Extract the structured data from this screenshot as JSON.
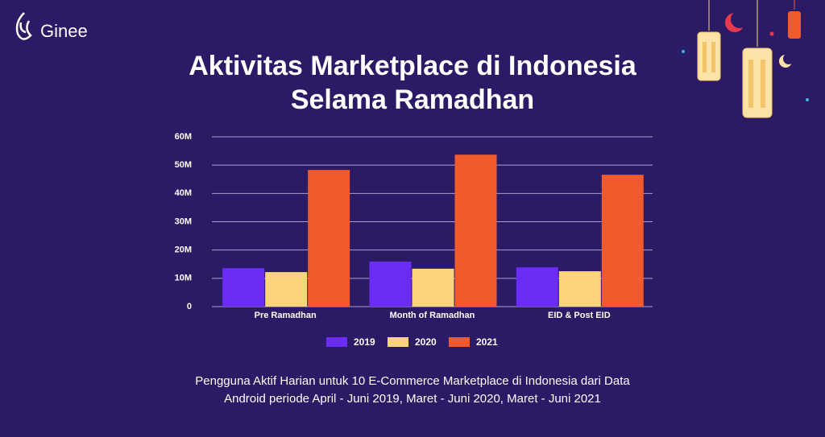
{
  "brand": "Ginee",
  "chart_data": {
    "type": "bar",
    "title": [
      "Aktivitas Marketplace di Indonesia",
      "Selama Ramadhan"
    ],
    "categories": [
      "Pre Ramadhan",
      "Month of Ramadhan",
      "EID & Post EID"
    ],
    "series": [
      {
        "name": "2019",
        "color": "#6b2cf5",
        "values": [
          13600000,
          15900000,
          13900000
        ]
      },
      {
        "name": "2020",
        "color": "#fdd47c",
        "values": [
          12200000,
          13400000,
          12500000
        ]
      },
      {
        "name": "2021",
        "color": "#f05a2c",
        "values": [
          48300000,
          53700000,
          46600000
        ]
      }
    ],
    "ylim": [
      0,
      60000000
    ],
    "yticks": [
      0,
      {
        "value": 10000000,
        "label": "10M"
      },
      {
        "value": 20000000,
        "label": "20M"
      },
      {
        "value": 30000000,
        "label": "30M"
      },
      {
        "value": 40000000,
        "label": "40M"
      },
      {
        "value": 50000000,
        "label": "50M"
      },
      {
        "value": 60000000,
        "label": "60M"
      }
    ],
    "grid": true,
    "note": [
      "Pengguna Aktif Harian untuk 10 E-Commerce Marketplace di Indonesia dari Data",
      "Android periode April - Juni 2019, Maret - Juni 2020, Maret - Juni 2021"
    ]
  }
}
